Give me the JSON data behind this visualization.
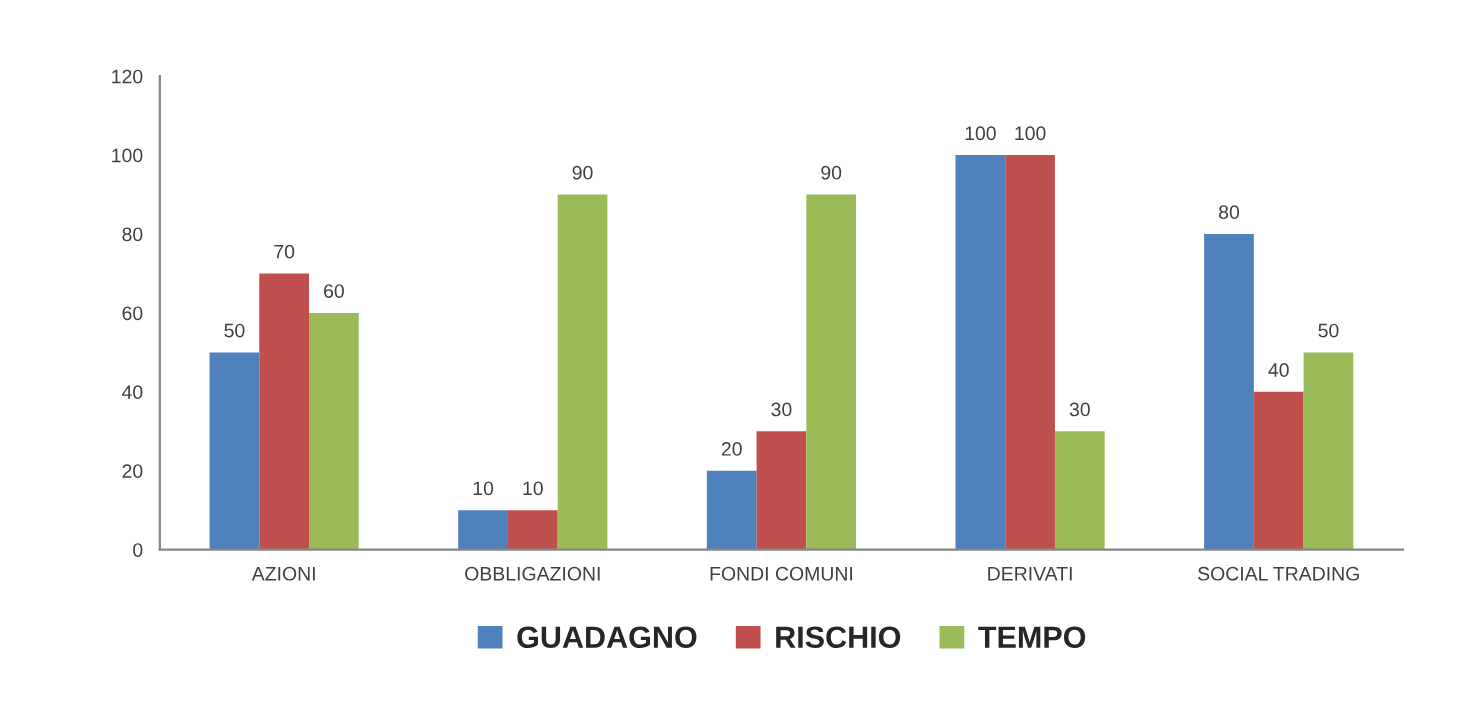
{
  "chart_data": {
    "type": "bar",
    "categories": [
      "AZIONI",
      "OBBLIGAZIONI",
      "FONDI COMUNI",
      "DERIVATI",
      "SOCIAL TRADING"
    ],
    "series": [
      {
        "name": "GUADAGNO",
        "color": "#4f81bd",
        "values": [
          50,
          10,
          20,
          100,
          80
        ]
      },
      {
        "name": "RISCHIO",
        "color": "#c0504d",
        "values": [
          70,
          10,
          30,
          100,
          40
        ]
      },
      {
        "name": "TEMPO",
        "color": "#9bbb59",
        "values": [
          60,
          90,
          90,
          30,
          50
        ]
      }
    ],
    "ylim": [
      0,
      120
    ],
    "yticks": [
      0,
      20,
      40,
      60,
      80,
      100,
      120
    ],
    "data_labels": true,
    "grid": false,
    "legend": "bottom"
  }
}
